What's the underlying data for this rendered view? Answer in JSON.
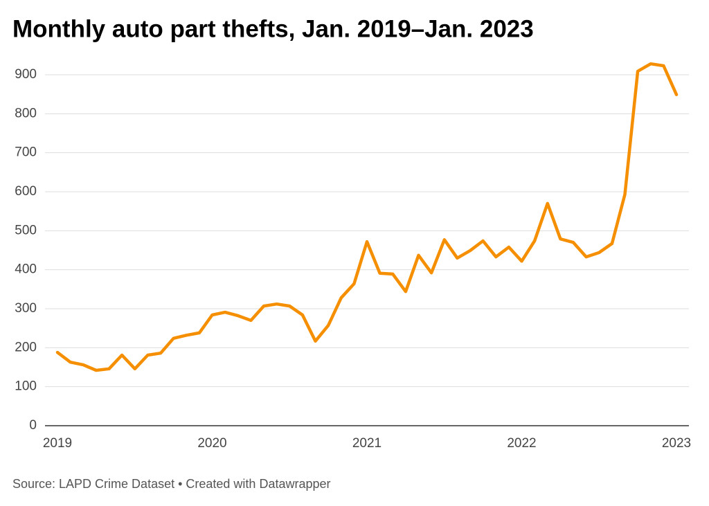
{
  "chart_data": {
    "type": "line",
    "title": "Monthly auto part thefts, Jan. 2019–Jan. 2023",
    "source": "Source: LAPD Crime Dataset • Created with Datawrapper",
    "categories": [
      "2019",
      null,
      null,
      null,
      null,
      null,
      null,
      null,
      null,
      null,
      null,
      null,
      "2020",
      null,
      null,
      null,
      null,
      null,
      null,
      null,
      null,
      null,
      null,
      null,
      "2021",
      null,
      null,
      null,
      null,
      null,
      null,
      null,
      null,
      null,
      null,
      null,
      "2022",
      null,
      null,
      null,
      null,
      null,
      null,
      null,
      null,
      null,
      null,
      null,
      "2023"
    ],
    "series": [
      {
        "color": "#f58f00",
        "values": [
          188,
          163,
          156,
          142,
          146,
          181,
          146,
          181,
          186,
          224,
          232,
          238,
          284,
          291,
          282,
          270,
          307,
          312,
          307,
          284,
          217,
          257,
          328,
          364,
          472,
          391,
          389,
          344,
          437,
          392,
          477,
          430,
          449,
          474,
          433,
          458,
          422,
          474,
          570,
          479,
          470,
          433,
          444,
          467,
          593,
          909,
          928,
          923,
          849
        ]
      }
    ],
    "ylim": [
      0,
      900
    ],
    "yticks": [
      0,
      100,
      200,
      300,
      400,
      500,
      600,
      700,
      800,
      900
    ],
    "grid": true
  }
}
